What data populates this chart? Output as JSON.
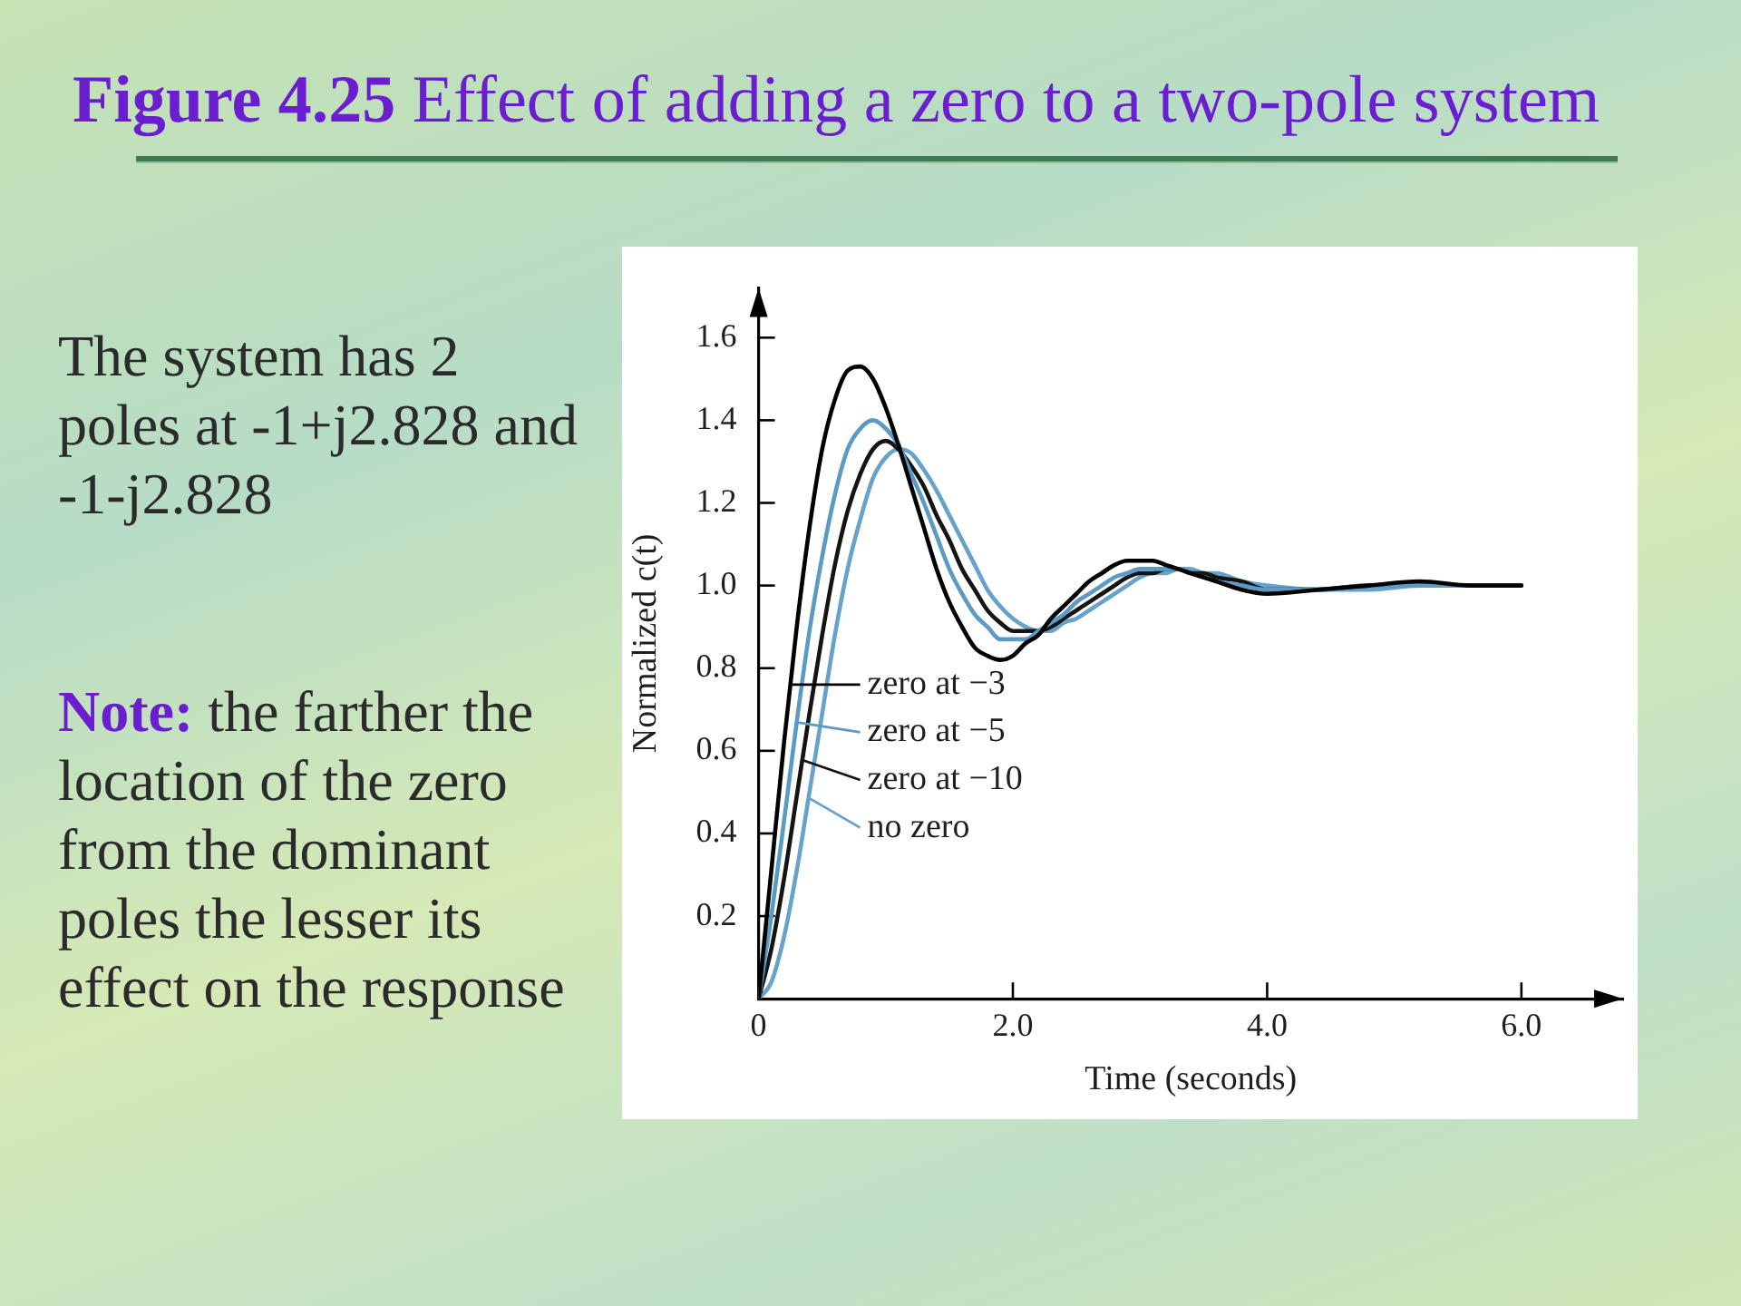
{
  "chart_data": {
    "type": "line",
    "title": "Figure 4.25 Effect of adding a zero to a two-pole system",
    "annotations": [
      "The system has 2 poles at -1+j2.828 and -1-j2.828",
      "Note: the farther the location of the zero from the dominant poles the lesser its effect on the response"
    ],
    "xlabel": "Time (seconds)",
    "ylabel": "Normalized c(t)",
    "legend": "left",
    "x": [
      0,
      0.1,
      0.2,
      0.3,
      0.4,
      0.5,
      0.6,
      0.7,
      0.8,
      0.9,
      1,
      1.1,
      1.2,
      1.3,
      1.4,
      1.5,
      1.6,
      1.7,
      1.8,
      1.9,
      2,
      2.1,
      2.2,
      2.3,
      2.4,
      2.5,
      2.6,
      2.7,
      2.8,
      2.9,
      3,
      3.1,
      3.2,
      3.3,
      3.4,
      3.5,
      3.6,
      3.8,
      4,
      4.4,
      4.8,
      5.2,
      5.6,
      6
    ],
    "xlim": [
      0,
      6.8
    ],
    "xticks": [
      0,
      {
        "value": 2,
        "label": "2.0"
      },
      {
        "value": 4,
        "label": "4.0"
      },
      {
        "value": 6,
        "label": "6.0"
      }
    ],
    "ylim": [
      0,
      1.72
    ],
    "yticks": [
      0.2,
      0.4,
      0.6,
      0.8,
      {
        "value": 1,
        "label": "1.0"
      },
      1.2,
      1.4,
      1.6
    ],
    "series": [
      {
        "name": "zero at −3",
        "color": "#000000",
        "values": [
          0,
          0.31,
          0.62,
          0.9,
          1.14,
          1.33,
          1.45,
          1.52,
          1.53,
          1.5,
          1.43,
          1.34,
          1.24,
          1.14,
          1.04,
          0.96,
          0.9,
          0.85,
          0.83,
          0.82,
          0.83,
          0.86,
          0.88,
          0.92,
          0.95,
          0.98,
          1.01,
          1.03,
          1.05,
          1.06,
          1.06,
          1.06,
          1.05,
          1.04,
          1.03,
          1.02,
          1.01,
          0.99,
          0.98,
          0.99,
          1,
          1.01,
          1,
          1
        ]
      },
      {
        "name": "zero at −5",
        "color": "#5b9ac4",
        "values": [
          0,
          0.2,
          0.43,
          0.67,
          0.89,
          1.07,
          1.22,
          1.33,
          1.38,
          1.4,
          1.38,
          1.34,
          1.27,
          1.2,
          1.12,
          1.04,
          0.98,
          0.93,
          0.9,
          0.87,
          0.87,
          0.87,
          0.89,
          0.91,
          0.93,
          0.96,
          0.98,
          1,
          1.02,
          1.03,
          1.04,
          1.04,
          1.04,
          1.04,
          1.03,
          1.02,
          1.01,
          1,
          0.99,
          0.99,
          1,
          1,
          1,
          1
        ]
      },
      {
        "name": "zero at −10",
        "color": "#141414",
        "values": [
          0,
          0.12,
          0.29,
          0.49,
          0.69,
          0.88,
          1.05,
          1.18,
          1.27,
          1.33,
          1.35,
          1.33,
          1.29,
          1.24,
          1.17,
          1.11,
          1.04,
          0.99,
          0.94,
          0.91,
          0.89,
          0.89,
          0.89,
          0.9,
          0.92,
          0.94,
          0.96,
          0.98,
          1,
          1.02,
          1.03,
          1.03,
          1.04,
          1.04,
          1.03,
          1.03,
          1.02,
          1.01,
          0.99,
          0.99,
          1,
          1,
          1,
          1
        ]
      },
      {
        "name": "no zero",
        "color": "#66a2c9",
        "values": [
          0,
          0.04,
          0.15,
          0.31,
          0.5,
          0.69,
          0.88,
          1.04,
          1.16,
          1.26,
          1.31,
          1.33,
          1.32,
          1.28,
          1.23,
          1.17,
          1.11,
          1.05,
          0.99,
          0.95,
          0.92,
          0.9,
          0.89,
          0.89,
          0.91,
          0.92,
          0.94,
          0.96,
          0.98,
          1,
          1.02,
          1.03,
          1.03,
          1.04,
          1.04,
          1.03,
          1.03,
          1.01,
          1,
          0.99,
          0.99,
          1,
          1,
          1
        ]
      }
    ]
  }
}
